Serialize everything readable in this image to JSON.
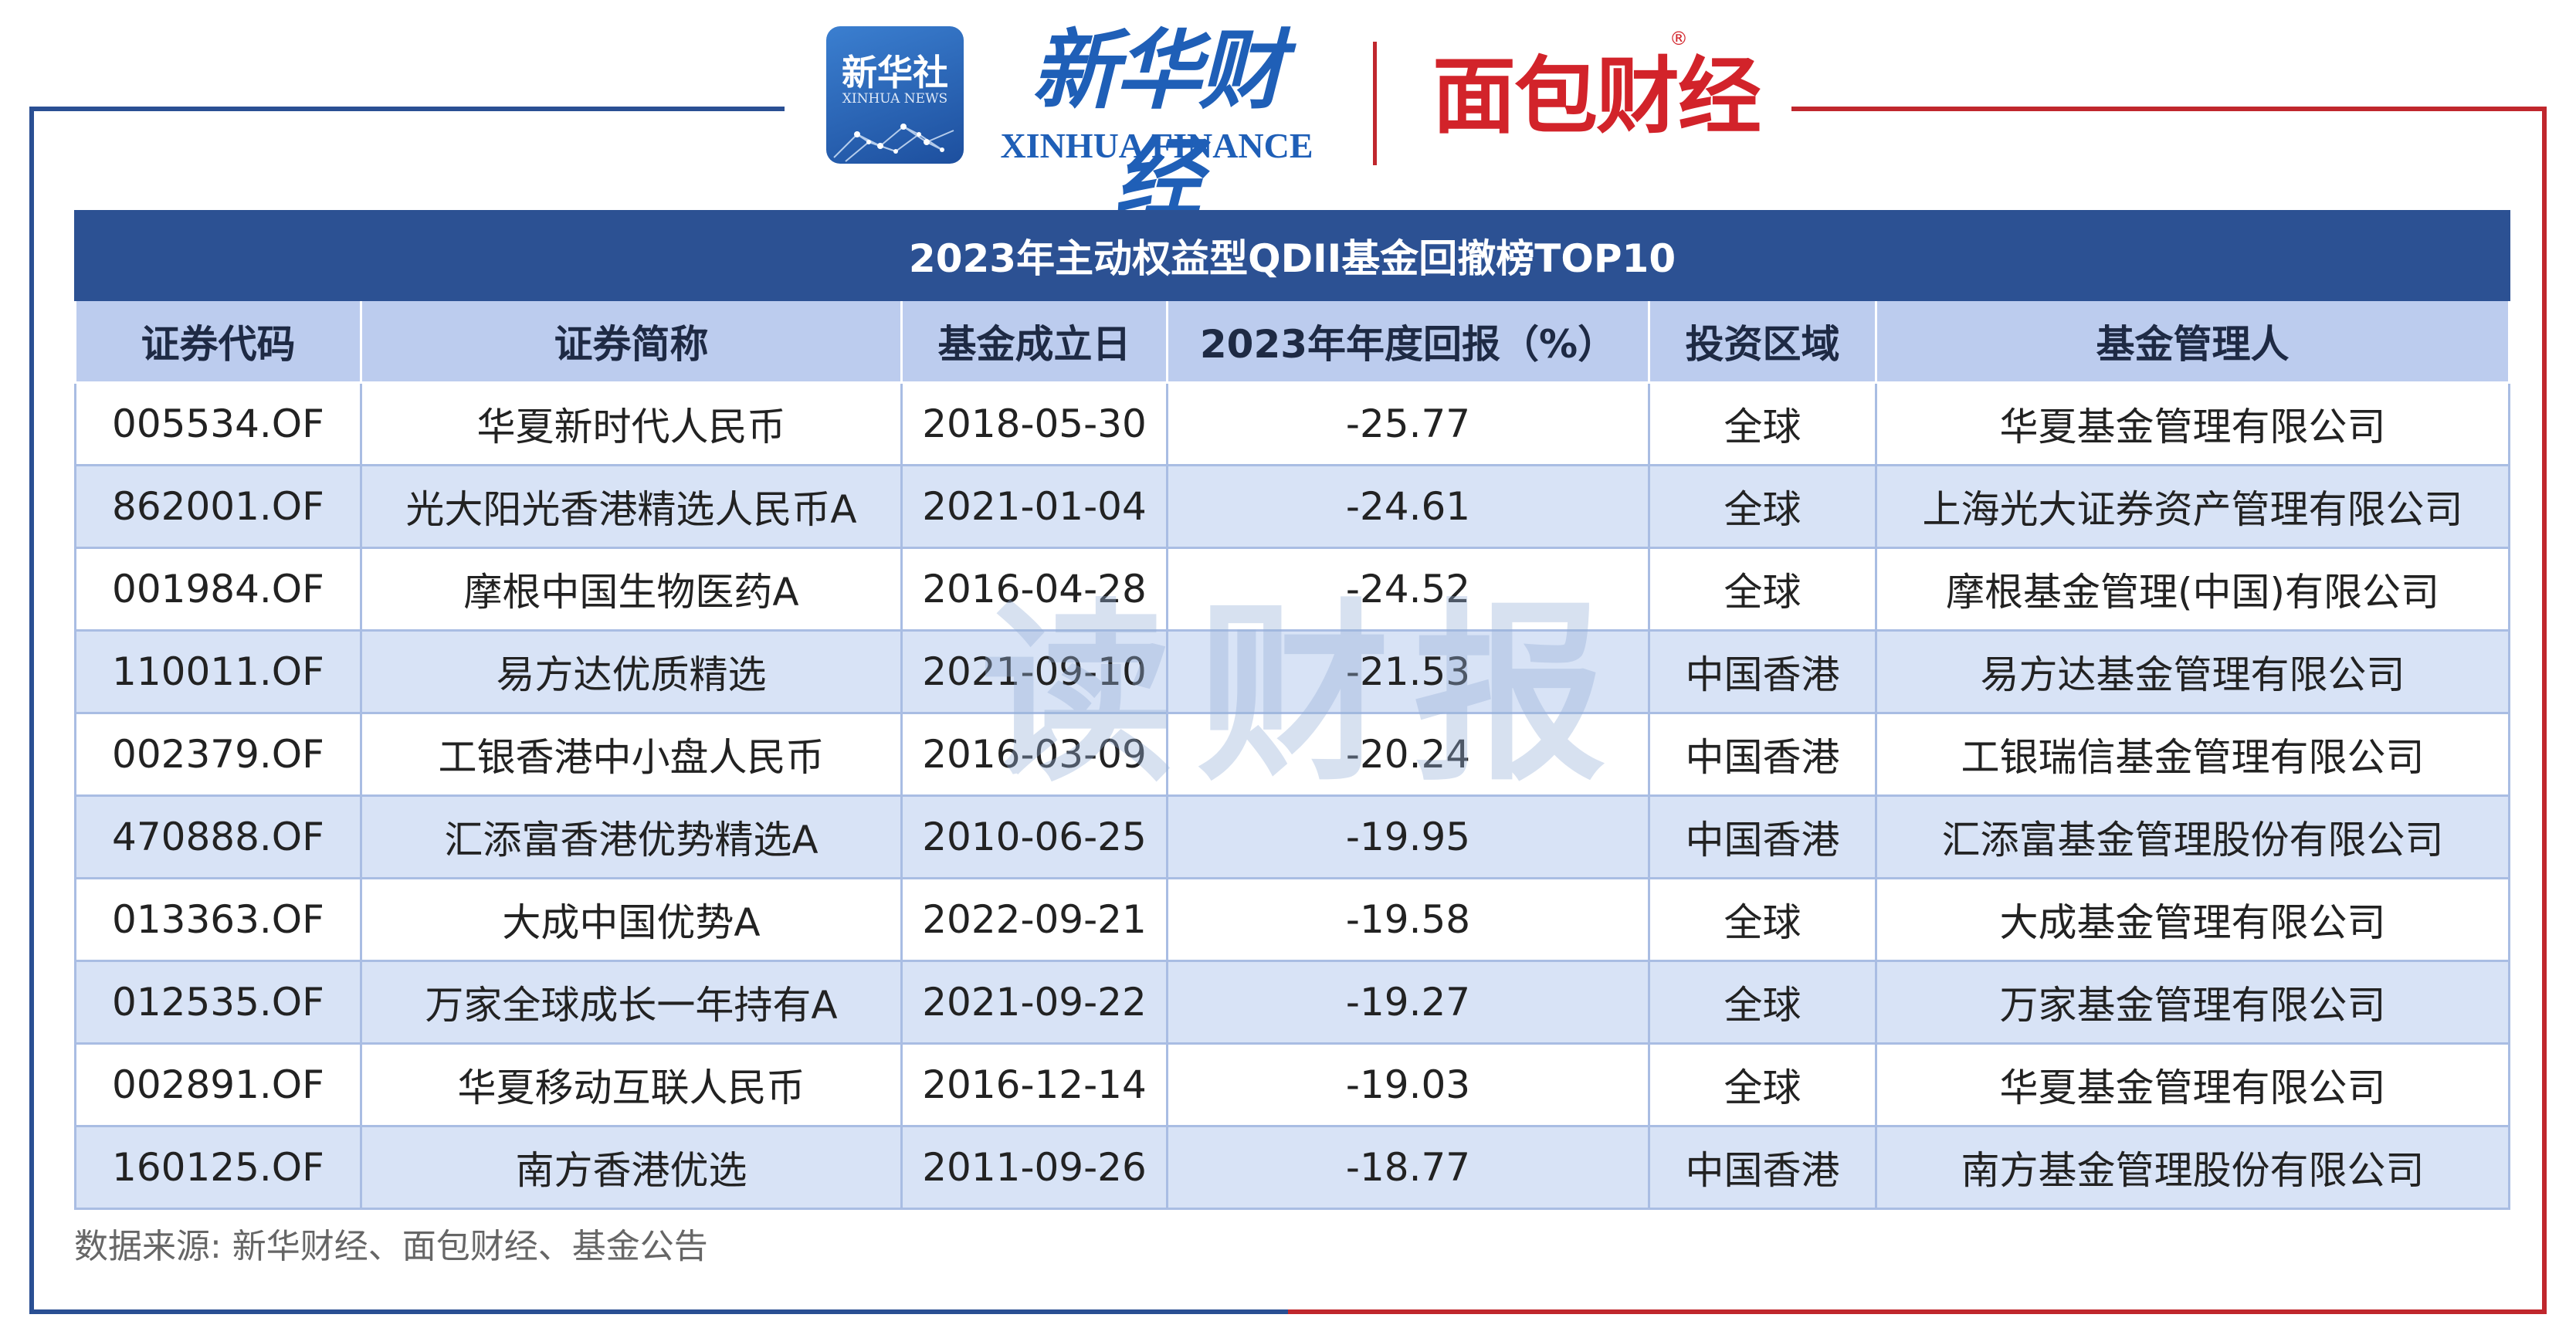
{
  "header": {
    "xinhua_badge_cn": "新华社",
    "xinhua_badge_en": "XINHUA NEWS",
    "xinhua_finance_cn": "新华财经",
    "xinhua_finance_en": "XINHUA FINANCE",
    "mianbao_logo": "面包财经",
    "registered_mark": "®"
  },
  "table": {
    "title": "2023年主动权益型QDII基金回撤榜TOP10",
    "columns": [
      "证券代码",
      "证券简称",
      "基金成立日",
      "2023年年度回报（%）",
      "投资区域",
      "基金管理人"
    ],
    "rows": [
      [
        "005534.OF",
        "华夏新时代人民币",
        "2018-05-30",
        "-25.77",
        "全球",
        "华夏基金管理有限公司"
      ],
      [
        "862001.OF",
        "光大阳光香港精选人民币A",
        "2021-01-04",
        "-24.61",
        "全球",
        "上海光大证券资产管理有限公司"
      ],
      [
        "001984.OF",
        "摩根中国生物医药A",
        "2016-04-28",
        "-24.52",
        "全球",
        "摩根基金管理(中国)有限公司"
      ],
      [
        "110011.OF",
        "易方达优质精选",
        "2021-09-10",
        "-21.53",
        "中国香港",
        "易方达基金管理有限公司"
      ],
      [
        "002379.OF",
        "工银香港中小盘人民币",
        "2016-03-09",
        "-20.24",
        "中国香港",
        "工银瑞信基金管理有限公司"
      ],
      [
        "470888.OF",
        "汇添富香港优势精选A",
        "2010-06-25",
        "-19.95",
        "中国香港",
        "汇添富基金管理股份有限公司"
      ],
      [
        "013363.OF",
        "大成中国优势A",
        "2022-09-21",
        "-19.58",
        "全球",
        "大成基金管理有限公司"
      ],
      [
        "012535.OF",
        "万家全球成长一年持有A",
        "2021-09-22",
        "-19.27",
        "全球",
        "万家基金管理有限公司"
      ],
      [
        "002891.OF",
        "华夏移动互联人民币",
        "2016-12-14",
        "-19.03",
        "全球",
        "华夏基金管理有限公司"
      ],
      [
        "160125.OF",
        "南方香港优选",
        "2011-09-26",
        "-18.77",
        "中国香港",
        "南方基金管理股份有限公司"
      ]
    ]
  },
  "watermark": "读财报",
  "source": "数据来源: 新华财经、面包财经、基金公告",
  "colors": {
    "title_bg": "#2c5193",
    "header_bg": "#bcccee",
    "stripe_bg": "#d8e3f6",
    "frame_left": "#2a4f93",
    "frame_right": "#c0272d",
    "mianbao_red": "#d2232a",
    "xinhua_blue": "#1f5fb7"
  }
}
